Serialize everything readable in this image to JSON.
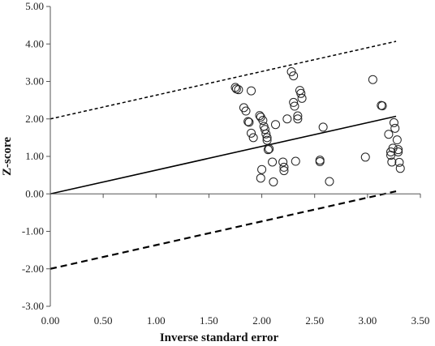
{
  "chart_data": {
    "type": "scatter",
    "title": "",
    "xlabel": "Inverse standard error",
    "ylabel": "Z-score",
    "xlim": [
      0,
      3.5
    ],
    "ylim": [
      -3,
      5
    ],
    "grid": false,
    "legend": "none",
    "x_ticks": [
      "0.00",
      "0.50",
      "1.00",
      "1.50",
      "2.00",
      "2.50",
      "3.00",
      "3.50"
    ],
    "y_ticks": [
      "-3.00",
      "-2.00",
      "-1.00",
      "0.00",
      "1.00",
      "2.00",
      "3.00",
      "4.00",
      "5.00"
    ],
    "points": [
      {
        "x": 1.75,
        "y": 2.84
      },
      {
        "x": 1.76,
        "y": 2.8
      },
      {
        "x": 1.78,
        "y": 2.78
      },
      {
        "x": 1.83,
        "y": 2.3
      },
      {
        "x": 1.85,
        "y": 2.21
      },
      {
        "x": 1.87,
        "y": 1.93
      },
      {
        "x": 1.88,
        "y": 1.91
      },
      {
        "x": 1.9,
        "y": 2.75
      },
      {
        "x": 1.9,
        "y": 1.62
      },
      {
        "x": 1.92,
        "y": 1.5
      },
      {
        "x": 1.98,
        "y": 2.09
      },
      {
        "x": 1.99,
        "y": 2.05
      },
      {
        "x": 2.01,
        "y": 1.96
      },
      {
        "x": 2.02,
        "y": 1.8
      },
      {
        "x": 2.03,
        "y": 1.72
      },
      {
        "x": 2.04,
        "y": 1.6
      },
      {
        "x": 2.05,
        "y": 1.5
      },
      {
        "x": 2.05,
        "y": 1.43
      },
      {
        "x": 2.07,
        "y": 1.2
      },
      {
        "x": 2.06,
        "y": 1.18
      },
      {
        "x": 2.0,
        "y": 0.65
      },
      {
        "x": 1.99,
        "y": 0.42
      },
      {
        "x": 2.1,
        "y": 0.85
      },
      {
        "x": 2.11,
        "y": 0.32
      },
      {
        "x": 2.13,
        "y": 1.85
      },
      {
        "x": 2.2,
        "y": 0.85
      },
      {
        "x": 2.21,
        "y": 0.71
      },
      {
        "x": 2.21,
        "y": 0.62
      },
      {
        "x": 2.24,
        "y": 2.0
      },
      {
        "x": 2.28,
        "y": 3.26
      },
      {
        "x": 2.3,
        "y": 3.15
      },
      {
        "x": 2.3,
        "y": 2.44
      },
      {
        "x": 2.31,
        "y": 2.34
      },
      {
        "x": 2.32,
        "y": 0.87
      },
      {
        "x": 2.34,
        "y": 2.08
      },
      {
        "x": 2.34,
        "y": 2.0
      },
      {
        "x": 2.36,
        "y": 2.76
      },
      {
        "x": 2.37,
        "y": 2.68
      },
      {
        "x": 2.38,
        "y": 2.55
      },
      {
        "x": 2.55,
        "y": 0.9
      },
      {
        "x": 2.55,
        "y": 0.86
      },
      {
        "x": 2.58,
        "y": 1.78
      },
      {
        "x": 2.64,
        "y": 0.33
      },
      {
        "x": 2.98,
        "y": 0.98
      },
      {
        "x": 3.05,
        "y": 3.05
      },
      {
        "x": 3.13,
        "y": 2.36
      },
      {
        "x": 3.14,
        "y": 2.35
      },
      {
        "x": 3.2,
        "y": 1.59
      },
      {
        "x": 3.22,
        "y": 1.12
      },
      {
        "x": 3.22,
        "y": 1.03
      },
      {
        "x": 3.23,
        "y": 0.85
      },
      {
        "x": 3.24,
        "y": 1.22
      },
      {
        "x": 3.25,
        "y": 1.9
      },
      {
        "x": 3.26,
        "y": 1.75
      },
      {
        "x": 3.28,
        "y": 1.44
      },
      {
        "x": 3.29,
        "y": 1.18
      },
      {
        "x": 3.29,
        "y": 1.12
      },
      {
        "x": 3.3,
        "y": 0.84
      },
      {
        "x": 3.31,
        "y": 0.68
      }
    ],
    "lines": [
      {
        "style": "solid",
        "x": [
          0,
          3.27
        ],
        "y": [
          0,
          2.07
        ]
      },
      {
        "style": "dotted",
        "x": [
          0,
          3.27
        ],
        "y": [
          2.0,
          4.07
        ]
      },
      {
        "style": "dashed",
        "x": [
          0,
          3.27
        ],
        "y": [
          -2.0,
          0.07
        ]
      }
    ]
  }
}
